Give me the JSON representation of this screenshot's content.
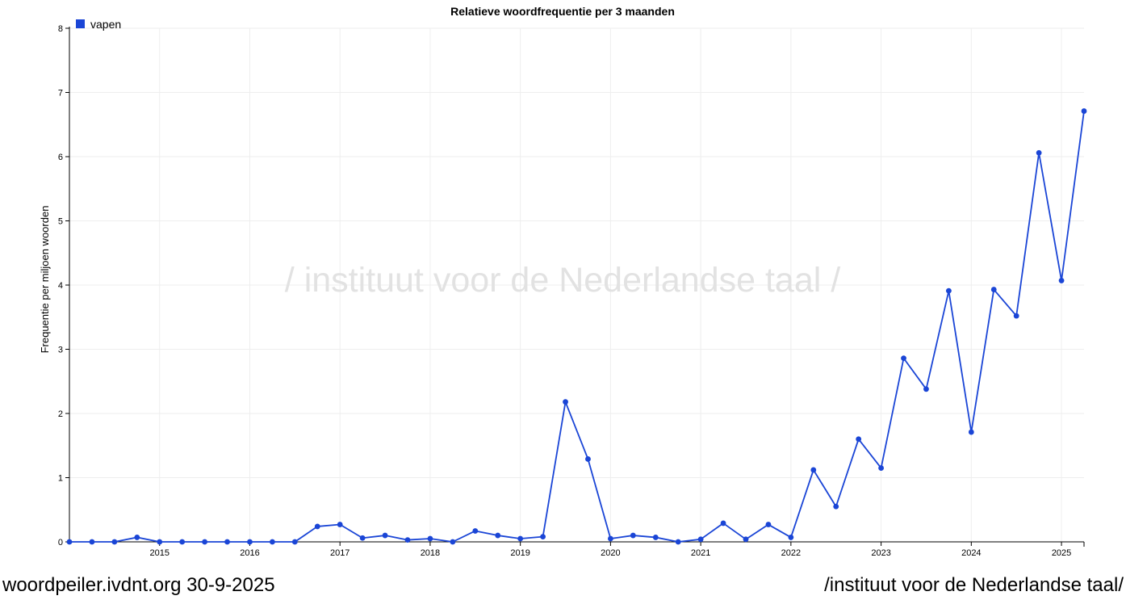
{
  "footer": {
    "site_date": "woordpeiler.ivdnt.org 30-9-2025",
    "institute": "/instituut voor de Nederlandse taal/"
  },
  "watermark": "/ instituut voor de Nederlandse taal /",
  "colors": {
    "series": "#1a45d6",
    "grid": "#eeeeee",
    "watermark": "#e2e2e2",
    "axis": "#000000"
  },
  "chart_data": {
    "type": "line",
    "title": "Relatieve woordfrequentie per 3 maanden",
    "ylabel": "Frequentie per miljoen woorden",
    "xlabel": "",
    "xlim": [
      2014.0,
      2025.25
    ],
    "ylim": [
      0,
      8
    ],
    "yticks": [
      0,
      1,
      2,
      3,
      4,
      5,
      6,
      7,
      8
    ],
    "xticks": [
      "2015",
      "2016",
      "2017",
      "2018",
      "2019",
      "2020",
      "2021",
      "2022",
      "2023",
      "2024",
      "2025"
    ],
    "grid": true,
    "legend": "top-left",
    "series": [
      {
        "name": "vapen",
        "x": [
          2014.0,
          2014.25,
          2014.5,
          2014.75,
          2015.0,
          2015.25,
          2015.5,
          2015.75,
          2016.0,
          2016.25,
          2016.5,
          2016.75,
          2017.0,
          2017.25,
          2017.5,
          2017.75,
          2018.0,
          2018.25,
          2018.5,
          2018.75,
          2019.0,
          2019.25,
          2019.5,
          2019.75,
          2020.0,
          2020.25,
          2020.5,
          2020.75,
          2021.0,
          2021.25,
          2021.5,
          2021.75,
          2022.0,
          2022.25,
          2022.5,
          2022.75,
          2023.0,
          2023.25,
          2023.5,
          2023.75,
          2024.0,
          2024.25,
          2024.5,
          2024.75,
          2025.0,
          2025.25
        ],
        "values": [
          0,
          0,
          0,
          0.07,
          0,
          0,
          0,
          0,
          0,
          0,
          0,
          0.24,
          0.27,
          0.06,
          0.1,
          0.03,
          0.05,
          0,
          0.17,
          0.1,
          0.05,
          0.08,
          2.18,
          1.29,
          0.05,
          0.1,
          0.07,
          0,
          0.04,
          0.29,
          0.04,
          0.27,
          0.07,
          1.12,
          0.55,
          1.6,
          1.15,
          2.86,
          2.38,
          3.91,
          1.71,
          3.93,
          3.52,
          6.06,
          4.07,
          6.71
        ]
      }
    ]
  }
}
